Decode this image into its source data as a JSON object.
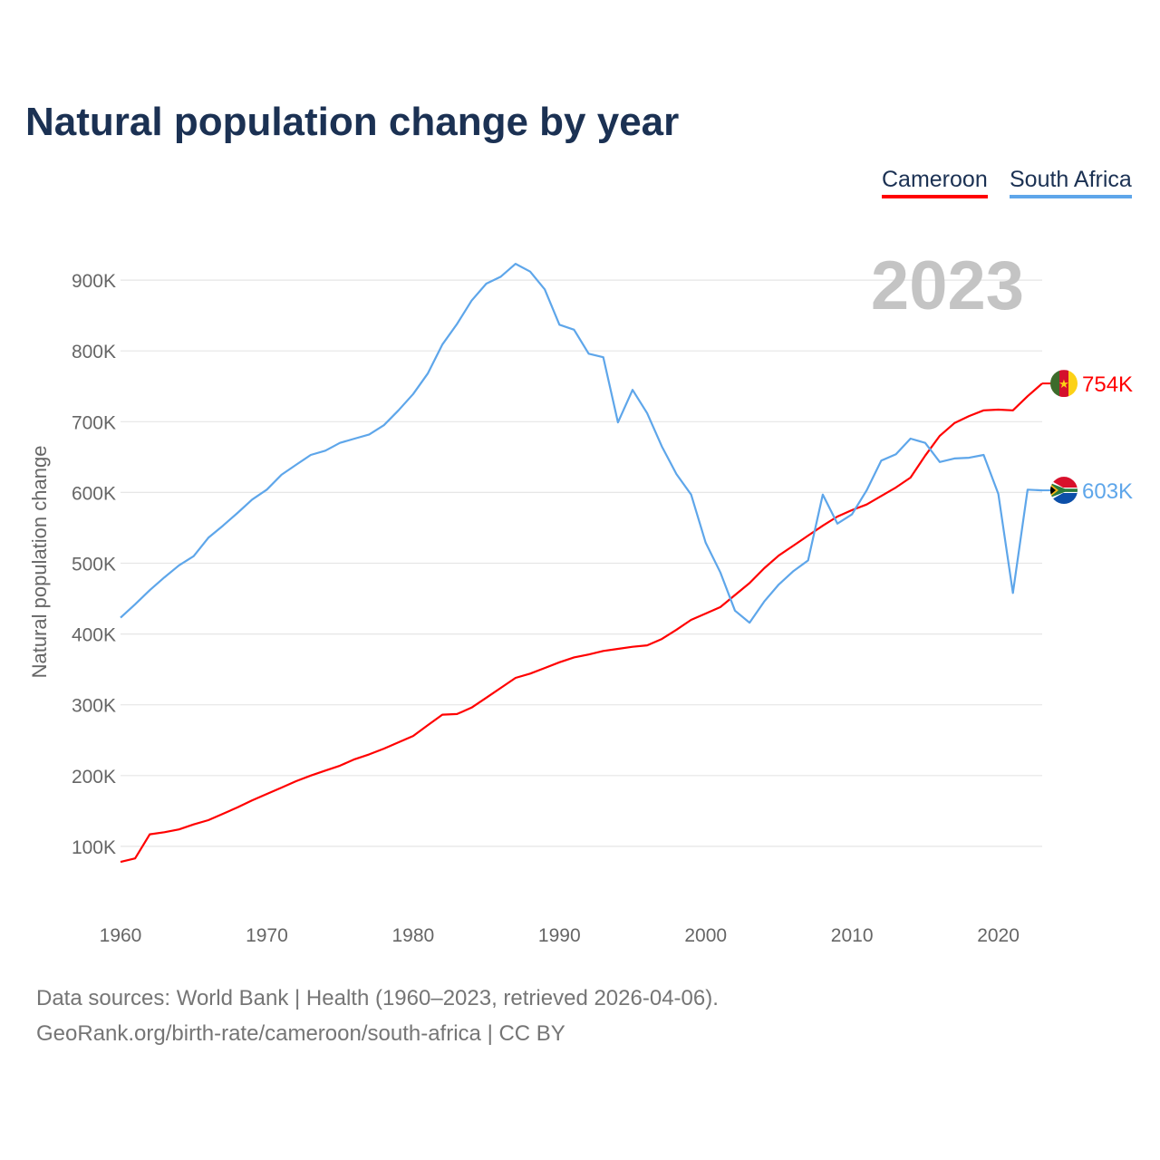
{
  "title": "Natural population change by year",
  "legend": [
    {
      "label": "Cameroon",
      "color": "#ff0000"
    },
    {
      "label": "South Africa",
      "color": "#5ea6ea"
    }
  ],
  "footer": {
    "line1": "Data sources: World Bank | Health (1960–2023, retrieved 2026-04-06).",
    "line2": "GeoRank.org/birth-rate/cameroon/south-africa | CC BY"
  },
  "chart_data": {
    "type": "line",
    "title": "Natural population change by year",
    "xlabel": "",
    "ylabel": "Natural population change",
    "year_label": "2023",
    "xlim": [
      1960,
      2023
    ],
    "ylim": [
      0,
      1000000
    ],
    "x_ticks": [
      1960,
      1970,
      1980,
      1990,
      2000,
      2010,
      2020
    ],
    "x_tick_labels": [
      "1960",
      "1970",
      "1980",
      "1990",
      "2000",
      "2010",
      "2020"
    ],
    "y_ticks": [
      100000,
      200000,
      300000,
      400000,
      500000,
      600000,
      700000,
      800000,
      900000
    ],
    "y_tick_labels": [
      "100K",
      "200K",
      "300K",
      "400K",
      "500K",
      "600K",
      "700K",
      "800K",
      "900K"
    ],
    "grid": true,
    "legend_position": "top-right",
    "x_start": 1960,
    "series": [
      {
        "name": "Cameroon",
        "color": "#ff0000",
        "end_label": "754K",
        "flag": "cameroon-flag",
        "values_k": [
          78,
          83,
          117,
          120,
          124,
          131,
          137,
          146,
          155,
          165,
          174,
          183,
          192,
          200,
          207,
          214,
          223,
          230,
          238,
          247,
          256,
          271,
          286,
          287,
          296,
          310,
          324,
          338,
          344,
          352,
          360,
          367,
          371,
          376,
          379,
          382,
          384,
          393,
          406,
          420,
          429,
          438,
          455,
          472,
          493,
          511,
          525,
          539,
          553,
          566,
          575,
          583,
          595,
          607,
          621,
          652,
          680,
          698,
          708,
          716,
          717,
          716,
          736,
          754
        ]
      },
      {
        "name": "South Africa",
        "color": "#5ea6ea",
        "end_label": "603K",
        "flag": "south-africa-flag",
        "values_k": [
          423,
          442,
          462,
          480,
          497,
          510,
          536,
          553,
          571,
          590,
          604,
          625,
          639,
          653,
          659,
          670,
          676,
          682,
          695,
          716,
          739,
          768,
          809,
          838,
          871,
          895,
          905,
          923,
          912,
          887,
          837,
          830,
          796,
          791,
          699,
          745,
          712,
          665,
          626,
          597,
          529,
          487,
          433,
          416,
          446,
          470,
          489,
          504,
          597,
          556,
          569,
          603,
          645,
          654,
          676,
          670,
          643,
          648,
          649,
          653,
          598,
          458,
          604,
          603
        ]
      }
    ]
  }
}
